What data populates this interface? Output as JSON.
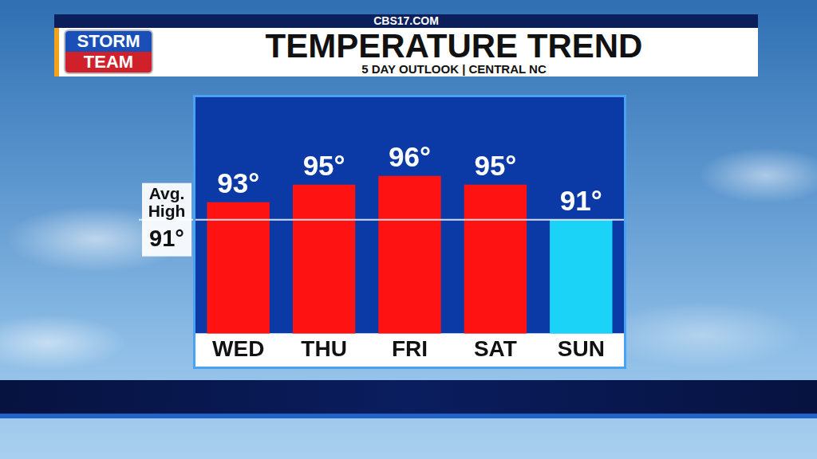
{
  "header": {
    "site": "CBS17.COM",
    "logo": [
      "STORM",
      "TEAM"
    ]
  },
  "chart_data": {
    "type": "bar",
    "title": "TEMPERATURE TREND",
    "subtitle": "5 DAY OUTLOOK | CENTRAL NC",
    "categories": [
      "WED",
      "THU",
      "FRI",
      "SAT",
      "SUN"
    ],
    "values": [
      93,
      95,
      96,
      95,
      91
    ],
    "value_labels": [
      "93°",
      "95°",
      "96°",
      "95°",
      "91°"
    ],
    "colors": [
      "#ff1212",
      "#ff1212",
      "#ff1212",
      "#ff1212",
      "#1ad3f7"
    ],
    "ylim": [
      78,
      105
    ],
    "grid": false,
    "data_labels": true,
    "tick_labels": "x",
    "avg_high": {
      "value": 91,
      "label": "Avg. High",
      "value_label": "91°"
    }
  }
}
